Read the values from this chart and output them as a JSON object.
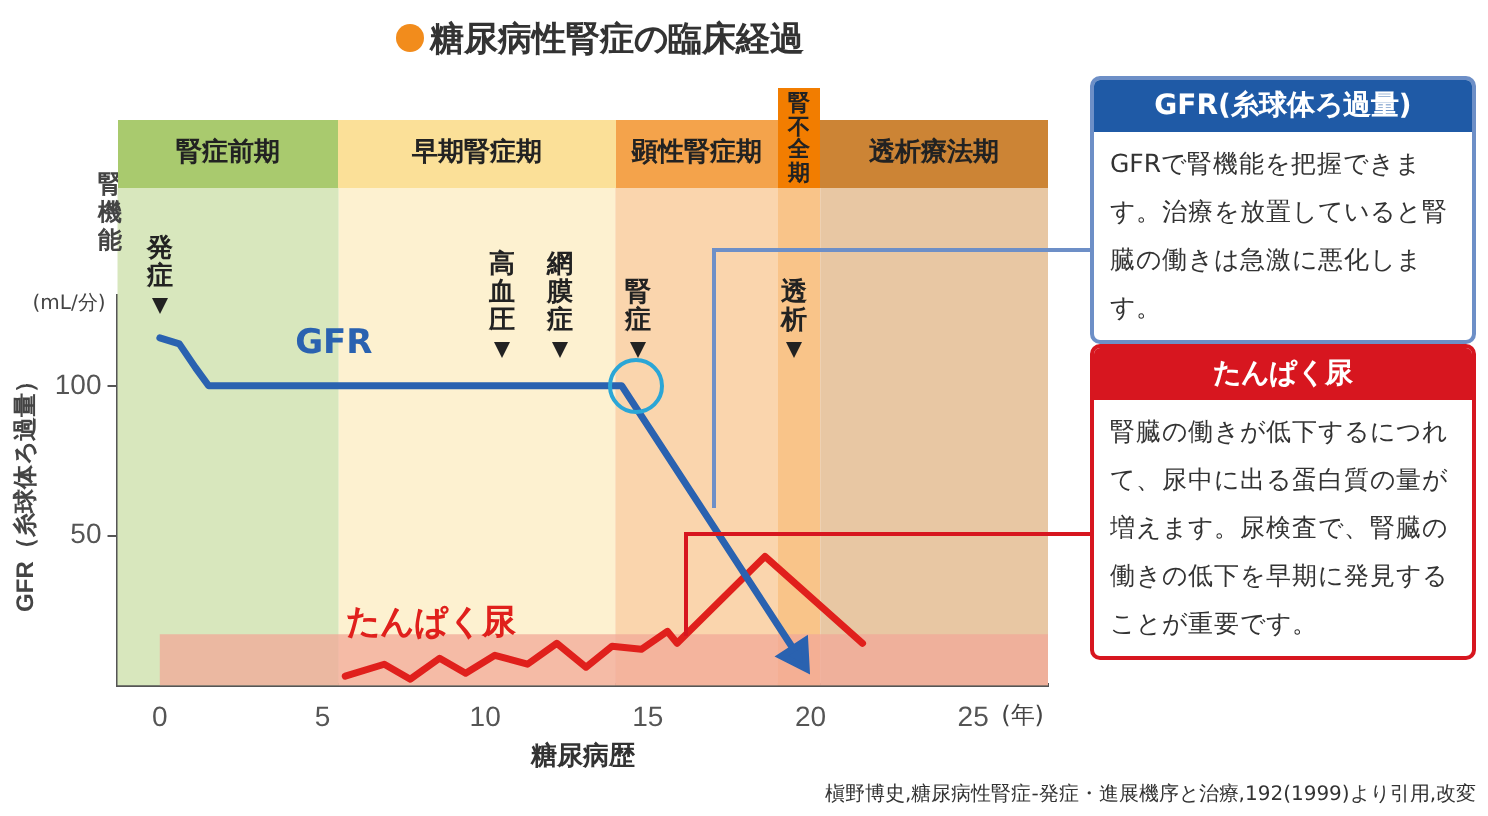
{
  "chart_data": {
    "type": "line",
    "title": "糖尿病性腎症の臨床経過",
    "xlabel": "糖尿病歴",
    "ylabel": "GFR（糸球体ろ過量）",
    "xlim": [
      -1.3,
      27.3
    ],
    "xticks": [
      0,
      5,
      10,
      15,
      20,
      25
    ],
    "ylim": [
      0,
      130
    ],
    "yticks": [
      50,
      100
    ],
    "series": [
      {
        "name": "GFR",
        "color": "#2a62b0",
        "x": [
          0,
          0.6,
          1.1,
          1.5,
          14.2,
          19.6
        ],
        "values": [
          116,
          114,
          106,
          100,
          100,
          10
        ]
      },
      {
        "name": "たんぱく尿",
        "color": "#e0201c",
        "x": [
          5.7,
          6.9,
          7.7,
          8.6,
          9.4,
          10.3,
          11.3,
          12.2,
          13.1,
          13.9,
          14.8,
          15.6,
          15.9,
          18.6,
          21.6
        ],
        "values": [
          3,
          7,
          2,
          9,
          4,
          10,
          7,
          14,
          6,
          13,
          12,
          18,
          14,
          43,
          14
        ]
      }
    ],
    "bands": [
      {
        "axis": "x",
        "from": -1.3,
        "to": 5.5,
        "label": "腎症前期",
        "color": "#d8e7bd"
      },
      {
        "axis": "x",
        "from": 5.5,
        "to": 14,
        "label": "早期腎症期",
        "color": "#fdf1d0"
      },
      {
        "axis": "x",
        "from": 14,
        "to": 19,
        "label": "顕性腎症期",
        "color": "#fad5ad"
      },
      {
        "axis": "x",
        "from": 19,
        "to": 20.3,
        "label": "腎不全期",
        "color": "#f9c489"
      },
      {
        "axis": "x",
        "from": 20.3,
        "to": 27.3,
        "label": "透析療法期",
        "color": "#e8c7a3"
      },
      {
        "axis": "y",
        "from": 0,
        "to": 17,
        "color": "#f2a898"
      }
    ],
    "annotations": [
      "腎機能",
      "(mL/分)",
      "(年)",
      "GFR(糸球体ろ過量)",
      "GFRで腎機能を把握できます。治療を放置していると腎臓の働きは急激に悪化します。",
      "たんぱく尿",
      "腎臓の働きが低下するにつれて、尿中に出る蛋白質の量が増えます。尿検査で、腎臓の働きの低下を早期に発見することが重要です。",
      "槇野博史,糖尿病性腎症-発症・進展機序と治療,192(1999)より引用,改変",
      "発症",
      "高血圧",
      "網膜症",
      "腎症",
      "透析"
    ],
    "grid": false,
    "legend": false,
    "marker": "none",
    "line_style": "solid"
  }
}
